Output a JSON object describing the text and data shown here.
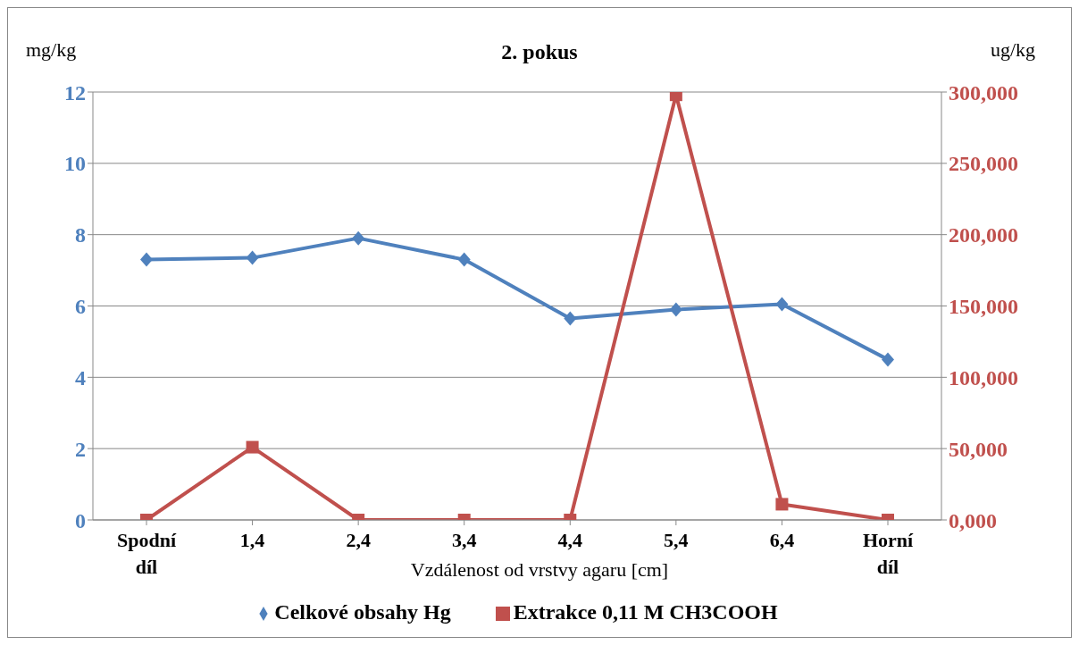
{
  "chart_data": {
    "type": "line",
    "title": "2. pokus",
    "xlabel": "Vzdálenost od vrstvy agaru [cm]",
    "ylabel": "mg/kg",
    "y2label": "ug/kg",
    "categories": [
      "Spodní díl",
      "1,4",
      "2,4",
      "3,4",
      "4,4",
      "5,4",
      "6,4",
      "Horní díl"
    ],
    "series": [
      {
        "name": "Celkové obsahy Hg",
        "color": "#4f81bd",
        "marker": "diamond",
        "values": [
          7.3,
          7.35,
          7.9,
          7.3,
          5.65,
          5.9,
          6.05,
          4.5
        ]
      },
      {
        "name": "Extrakce 0,11 M CH3COOH",
        "color": "#c0504d",
        "marker": "square",
        "axis": "y2",
        "values": [
          0,
          51,
          0,
          0,
          0,
          298,
          11,
          0
        ]
      }
    ],
    "ylim": [
      0,
      12
    ],
    "yticks": [
      0,
      2,
      4,
      6,
      8,
      10,
      12
    ],
    "y2lim": [
      0,
      300
    ],
    "y2ticks": [
      {
        "value": 0,
        "label": "0,000"
      },
      {
        "value": 50,
        "label": "50,000"
      },
      {
        "value": 100,
        "label": "100,000"
      },
      {
        "value": 150,
        "label": "150,000"
      },
      {
        "value": 200,
        "label": "200,000"
      },
      {
        "value": 250,
        "label": "250,000"
      },
      {
        "value": 300,
        "label": "300,000"
      }
    ],
    "grid": "y",
    "legend": "bottom",
    "line_style": "solid"
  }
}
